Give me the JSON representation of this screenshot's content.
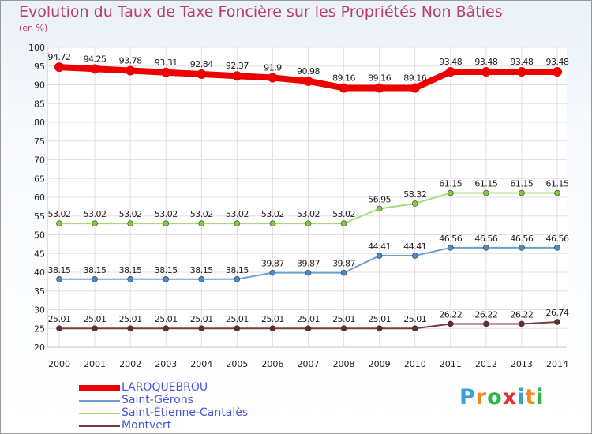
{
  "title": "Evolution du Taux de Taxe Foncière sur les Propriétés Non Bâties",
  "unit_label": "(en %)",
  "colors": {
    "title": "#bd3a72",
    "grid": "#e0e0e0",
    "axis": "#c0c0c0",
    "legend_text": "#4a55d6"
  },
  "logo": {
    "text": "Proxiti",
    "letters": [
      {
        "ch": "P",
        "color": "#3aa0d8"
      },
      {
        "ch": "r",
        "color": "#f08a1c"
      },
      {
        "ch": "o",
        "color": "#2db84a"
      },
      {
        "ch": "x",
        "color": "#e6312b"
      },
      {
        "ch": "i",
        "color": "#3aa0d8"
      },
      {
        "ch": "t",
        "color": "#f08a1c"
      },
      {
        "ch": "i",
        "color": "#2db84a"
      }
    ]
  },
  "chart_data": {
    "type": "line",
    "title": "Evolution du Taux de Taxe Foncière sur les Propriétés Non Bâties",
    "ylabel": "(en %)",
    "xlabel": "",
    "ylim": [
      20,
      100
    ],
    "yticks": [
      20,
      25,
      30,
      35,
      40,
      45,
      50,
      55,
      60,
      65,
      70,
      75,
      80,
      85,
      90,
      95,
      100
    ],
    "grid": true,
    "legend_position": "bottom-left",
    "categories": [
      "2000",
      "2001",
      "2002",
      "2003",
      "2004",
      "2005",
      "2006",
      "2007",
      "2008",
      "2009",
      "2010",
      "2011",
      "2012",
      "2013",
      "2014"
    ],
    "series": [
      {
        "name": "LAROQUEBROU",
        "color": "#ee0000",
        "values": [
          94.72,
          94.25,
          93.78,
          93.31,
          92.84,
          92.37,
          91.9,
          90.98,
          89.16,
          89.16,
          89.16,
          93.48,
          93.48,
          93.48,
          93.48
        ],
        "labels": [
          "94.72",
          "94.25",
          "93.78",
          "93.31",
          "92.84",
          "92.37",
          "91.9",
          "90.98",
          "89.16",
          "89.16",
          "89.16",
          "93.48",
          "93.48",
          "93.48",
          "93.48"
        ]
      },
      {
        "name": "Saint-Gérons",
        "color": "#6a9fd0",
        "marker_color": "#4b8cc8",
        "values": [
          38.15,
          38.15,
          38.15,
          38.15,
          38.15,
          38.15,
          39.87,
          39.87,
          39.87,
          44.41,
          44.41,
          46.56,
          46.56,
          46.56,
          46.56
        ],
        "labels": [
          "38.15",
          "38.15",
          "38.15",
          "38.15",
          "38.15",
          "38.15",
          "39.87",
          "39.87",
          "39.87",
          "44.41",
          "44.41",
          "46.56",
          "46.56",
          "46.56",
          "46.56"
        ]
      },
      {
        "name": "Saint-Étienne-Cantalès",
        "color": "#a8dc7a",
        "marker_color": "#7ccc3c",
        "values": [
          53.02,
          53.02,
          53.02,
          53.02,
          53.02,
          53.02,
          53.02,
          53.02,
          53.02,
          56.95,
          58.32,
          61.15,
          61.15,
          61.15,
          61.15
        ],
        "labels": [
          "53.02",
          "53.02",
          "53.02",
          "53.02",
          "53.02",
          "53.02",
          "53.02",
          "53.02",
          "53.02",
          "56.95",
          "58.32",
          "61.15",
          "61.15",
          "61.15",
          "61.15"
        ]
      },
      {
        "name": "Montvert",
        "color": "#7a3b3b",
        "marker_color": "#6b2b2b",
        "values": [
          25.01,
          25.01,
          25.01,
          25.01,
          25.01,
          25.01,
          25.01,
          25.01,
          25.01,
          25.01,
          25.01,
          26.22,
          26.22,
          26.22,
          26.74
        ],
        "labels": [
          "25.01",
          "25.01",
          "25.01",
          "25.01",
          "25.01",
          "25.01",
          "25.01",
          "25.01",
          "25.01",
          "25.01",
          "25.01",
          "26.22",
          "26.22",
          "26.22",
          "26.74"
        ]
      }
    ]
  }
}
